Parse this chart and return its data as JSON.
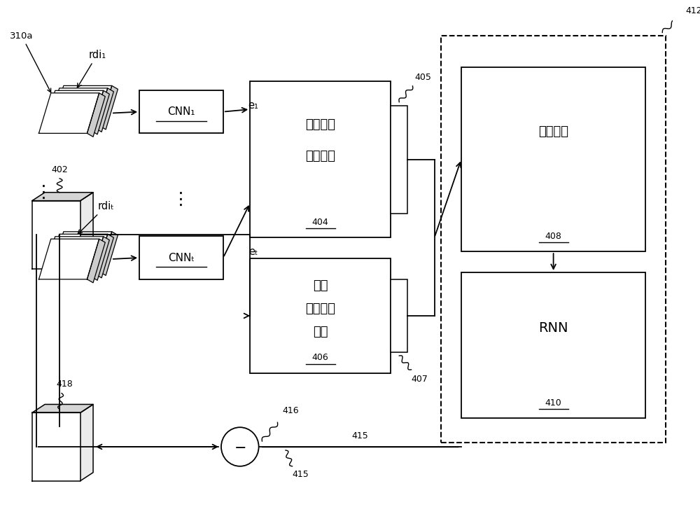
{
  "bg_color": "#ffffff",
  "fig_w": 10.0,
  "fig_h": 7.44,
  "label_310a": "310a",
  "label_rdi1": "rdi₁",
  "label_rdit": "rdiₜ",
  "label_e1": "e₁",
  "label_et": "eₜ",
  "label_402": "402",
  "label_404": "404",
  "label_405": "405",
  "label_406": "406",
  "label_407": "407",
  "label_408": "408",
  "label_410": "410",
  "label_412": "412",
  "label_415": "415",
  "label_416": "416",
  "label_418": "418",
  "text_cnn1": "CNN₁",
  "text_cnnt": "CNNₜ",
  "text_404_line1": "视觉扩张",
  "text_404_line2": "卷积网络",
  "text_404_sub": "404",
  "text_406_line1": "音频",
  "text_406_line2": "扩张卷积",
  "text_406_line3": "网络",
  "text_406_sub": "406",
  "text_408_line1": "串接模块",
  "text_408_sub": "408",
  "text_410": "RNN",
  "text_410_sub": "410"
}
